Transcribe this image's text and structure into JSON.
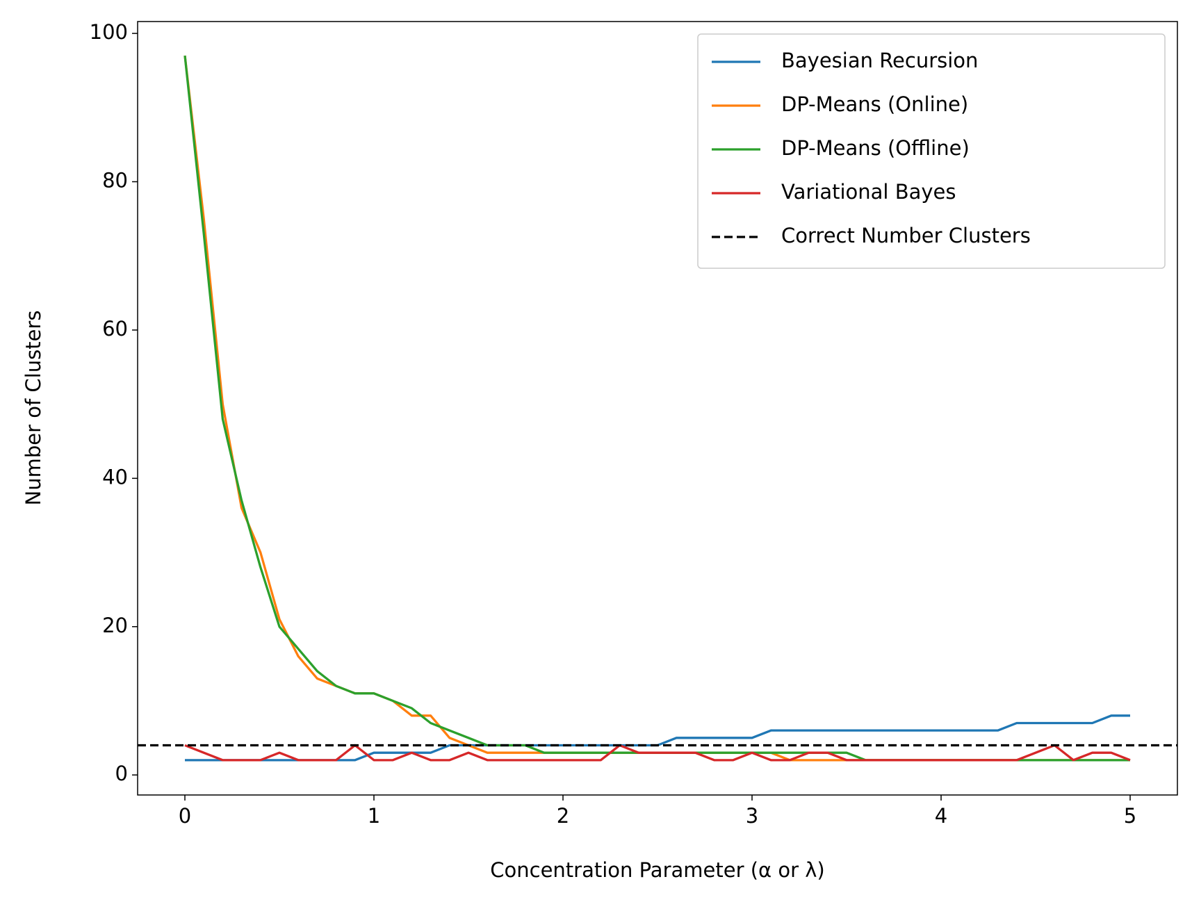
{
  "chart_data": {
    "type": "line",
    "xlabel": "Concentration Parameter (α or λ)",
    "ylabel": "Number of Clusters",
    "x": [
      0,
      0.1,
      0.2,
      0.3,
      0.4,
      0.5,
      0.6,
      0.7,
      0.8,
      0.9,
      1.0,
      1.1,
      1.2,
      1.3,
      1.4,
      1.5,
      1.6,
      1.7,
      1.8,
      1.9,
      2.0,
      2.1,
      2.2,
      2.3,
      2.4,
      2.5,
      2.6,
      2.7,
      2.8,
      2.9,
      3.0,
      3.1,
      3.2,
      3.3,
      3.4,
      3.5,
      3.6,
      3.7,
      3.8,
      3.9,
      4.0,
      4.1,
      4.2,
      4.3,
      4.4,
      4.5,
      4.6,
      4.7,
      4.8,
      4.9,
      5.0
    ],
    "series": [
      {
        "name": "Bayesian Recursion",
        "color": "#1f77b4",
        "values": [
          2,
          2,
          2,
          2,
          2,
          2,
          2,
          2,
          2,
          2,
          3,
          3,
          3,
          3,
          4,
          4,
          4,
          4,
          4,
          4,
          4,
          4,
          4,
          4,
          4,
          4,
          5,
          5,
          5,
          5,
          5,
          6,
          6,
          6,
          6,
          6,
          6,
          6,
          6,
          6,
          6,
          6,
          6,
          6,
          7,
          7,
          7,
          7,
          7,
          8,
          8
        ]
      },
      {
        "name": "DP-Means (Online)",
        "color": "#ff7f0e",
        "values": [
          97,
          75,
          50,
          36,
          30,
          21,
          16,
          13,
          12,
          11,
          11,
          10,
          8,
          8,
          5,
          4,
          3,
          3,
          3,
          3,
          3,
          3,
          3,
          3,
          3,
          3,
          3,
          3,
          3,
          3,
          3,
          3,
          2,
          2,
          2,
          2,
          2,
          2,
          2,
          2,
          2,
          2,
          2,
          2,
          2,
          2,
          2,
          2,
          2,
          2,
          2
        ]
      },
      {
        "name": "DP-Means (Offline)",
        "color": "#2ca02c",
        "values": [
          97,
          73,
          48,
          37,
          28,
          20,
          17,
          14,
          12,
          11,
          11,
          10,
          9,
          7,
          6,
          5,
          4,
          4,
          4,
          3,
          3,
          3,
          3,
          3,
          3,
          3,
          3,
          3,
          3,
          3,
          3,
          3,
          3,
          3,
          3,
          3,
          2,
          2,
          2,
          2,
          2,
          2,
          2,
          2,
          2,
          2,
          2,
          2,
          2,
          2,
          2
        ]
      },
      {
        "name": "Variational Bayes",
        "color": "#d62728",
        "values": [
          4,
          3,
          2,
          2,
          2,
          3,
          2,
          2,
          2,
          4,
          2,
          2,
          3,
          2,
          2,
          3,
          2,
          2,
          2,
          2,
          2,
          2,
          2,
          4,
          3,
          3,
          3,
          3,
          2,
          2,
          3,
          2,
          2,
          3,
          3,
          2,
          2,
          2,
          2,
          2,
          2,
          2,
          2,
          2,
          2,
          3,
          4,
          2,
          3,
          3,
          2
        ]
      }
    ],
    "hline": {
      "name": "Correct Number Clusters",
      "value": 4,
      "color": "#000000"
    },
    "xlim": [
      -0.25,
      5.25
    ],
    "xticks": [
      0,
      1,
      2,
      3,
      4,
      5
    ],
    "ylim": [
      -2.7,
      101.6
    ],
    "yticks": [
      0,
      20,
      40,
      60,
      80,
      100
    ],
    "legend": "upper right",
    "grid": false
  }
}
